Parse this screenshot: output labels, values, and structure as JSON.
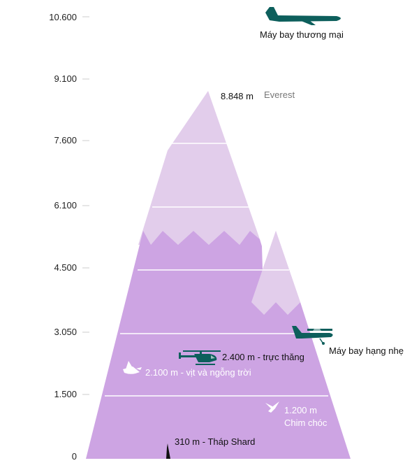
{
  "axis": {
    "ticks": [
      "10.600",
      "9.100",
      "7.600",
      "6.100",
      "4.500",
      "3.050",
      "1.500",
      "0"
    ]
  },
  "labels": {
    "commercial_plane": "Máy bay thương mại",
    "everest_height": "8.848 m",
    "everest_name": "Everest",
    "light_plane": "Máy bay hạng nhẹ",
    "helicopter": "2.400 m - trực thăng",
    "ducks_geese": "2.100 m - vịt và ngỗng trời",
    "birds_height": "1.200 m",
    "birds_name": "Chim chóc",
    "shard": "310 m - Tháp Shard"
  },
  "colors": {
    "mountain_light": "#e2cdeb",
    "mountain_dark": "#cda4e3",
    "aircraft": "#0d5f5c",
    "grid": "#ffffff",
    "tick_line": "#cccccc"
  },
  "icons": [
    "commercial-plane-icon",
    "light-plane-icon",
    "helicopter-icon",
    "goose-icon",
    "bird-icon",
    "shard-tower-icon"
  ]
}
